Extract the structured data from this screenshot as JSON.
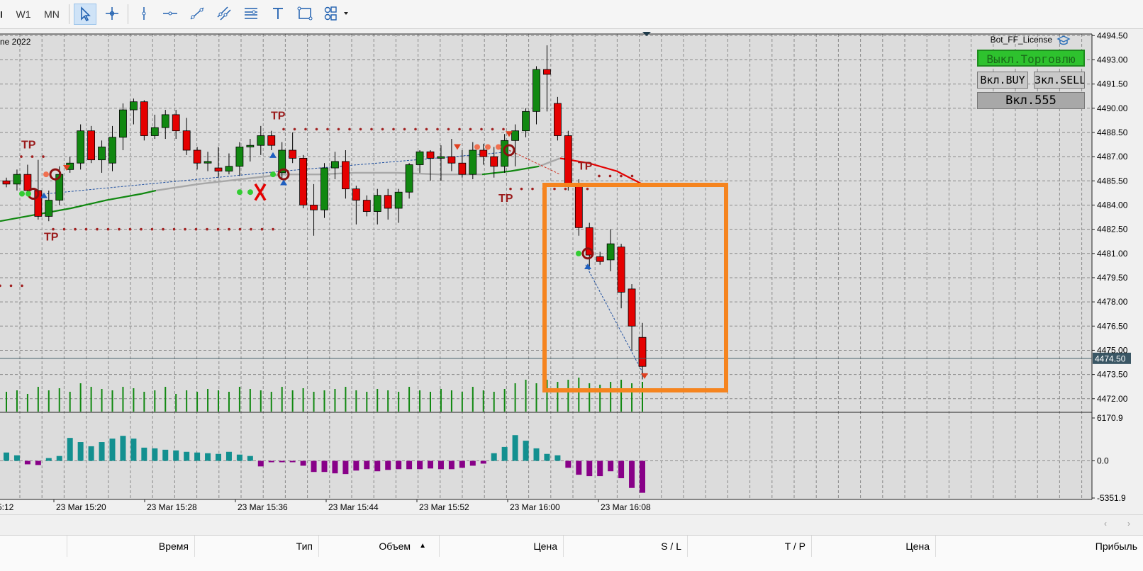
{
  "toolbar": {
    "timeframes": [
      "W1",
      "MN"
    ],
    "tools": [
      {
        "name": "cursor-icon",
        "active": true
      },
      {
        "name": "crosshair-icon",
        "active": false
      },
      {
        "name": "vertical-line-icon",
        "active": false
      },
      {
        "name": "horizontal-line-icon",
        "active": false
      },
      {
        "name": "trend-line-icon",
        "active": false
      },
      {
        "name": "channel-icon",
        "active": false
      },
      {
        "name": "fibonacci-icon",
        "active": false
      },
      {
        "name": "text-icon",
        "active": false
      },
      {
        "name": "rectangle-icon",
        "active": false
      },
      {
        "name": "shapes-icon",
        "active": false
      }
    ]
  },
  "chart": {
    "title_fragment": "ne 2022",
    "expert_label": "Bot_FF_License",
    "buttons": {
      "disable_trading": "Выкл.Торговлю",
      "buy": "Вкл.BUY",
      "sell": "Зкл.SELL",
      "magic": "Вкл.555"
    },
    "current_price": "4474.50",
    "price_labels": [
      "4494.50",
      "4493.00",
      "4491.50",
      "4490.00",
      "4488.50",
      "4487.00",
      "4485.50",
      "4484.00",
      "4482.50",
      "4481.00",
      "4479.50",
      "4478.00",
      "4476.50",
      "4475.00",
      "4473.50",
      "4472.00"
    ],
    "price_range": [
      4471.2,
      4494.6
    ],
    "osc_labels": [
      "6170.9",
      "0.0",
      "-5351.9"
    ],
    "osc_range": [
      -5351.9,
      6170.9
    ],
    "time_labels": [
      "5:12",
      "23 Mar 15:20",
      "23 Mar 15:28",
      "23 Mar 15:36",
      "23 Mar 15:44",
      "23 Mar 15:52",
      "23 Mar 16:00",
      "23 Mar 16:08"
    ],
    "tp_label": "TP",
    "colors": {
      "bull": "#118811",
      "bear": "#e50000",
      "osc_pos": "#139090",
      "osc_neg": "#880088",
      "highlight": "#f5841f",
      "ma_up": "#118811",
      "ma_flat": "#a8a8a8",
      "ma_down": "#e50000",
      "dots": "#a02020"
    },
    "candles": [
      [
        4485.5,
        4485.7,
        4485.1,
        4485.3
      ],
      [
        4485.3,
        4486.2,
        4484.9,
        4485.9
      ],
      [
        4485.9,
        4486.5,
        4484.7,
        4484.9
      ],
      [
        4484.9,
        4486.8,
        4483.1,
        4483.3
      ],
      [
        4483.3,
        4484.9,
        4483.0,
        4484.3
      ],
      [
        4484.3,
        4486.4,
        4484.0,
        4485.9
      ],
      [
        4486.2,
        4487.0,
        4486.0,
        4486.6
      ],
      [
        4486.6,
        4489.0,
        4486.2,
        4488.6
      ],
      [
        4488.6,
        4488.9,
        4486.6,
        4486.8
      ],
      [
        4486.8,
        4488.0,
        4486.0,
        4487.6
      ],
      [
        4486.6,
        4488.9,
        4486.1,
        4488.2
      ],
      [
        4488.2,
        4490.3,
        4487.4,
        4489.9
      ],
      [
        4489.9,
        4490.6,
        4489.0,
        4490.4
      ],
      [
        4490.4,
        4490.5,
        4488.0,
        4488.3
      ],
      [
        4488.3,
        4489.6,
        4488.1,
        4488.8
      ],
      [
        4488.8,
        4489.9,
        4488.1,
        4489.6
      ],
      [
        4489.6,
        4489.9,
        4488.1,
        4488.6
      ],
      [
        4488.6,
        4489.4,
        4487.1,
        4487.4
      ],
      [
        4487.4,
        4487.6,
        4486.2,
        4486.6
      ],
      [
        4486.6,
        4487.3,
        4486.1,
        4486.7
      ],
      [
        4486.3,
        4487.6,
        4485.7,
        4486.1
      ],
      [
        4486.1,
        4487.2,
        4485.9,
        4486.4
      ],
      [
        4486.4,
        4487.9,
        4485.8,
        4487.6
      ],
      [
        4487.6,
        4488.1,
        4486.7,
        4487.7
      ],
      [
        4487.7,
        4488.9,
        4487.1,
        4488.3
      ],
      [
        4488.3,
        4488.6,
        4487.4,
        4487.7
      ],
      [
        4486.0,
        4487.9,
        4485.6,
        4487.4
      ],
      [
        4487.4,
        4488.5,
        4486.6,
        4486.9
      ],
      [
        4486.9,
        4487.1,
        4483.8,
        4484.0
      ],
      [
        4484.0,
        4485.3,
        4482.1,
        4483.7
      ],
      [
        4483.7,
        4486.6,
        4483.2,
        4486.3
      ],
      [
        4486.3,
        4487.3,
        4485.6,
        4486.7
      ],
      [
        4486.7,
        4487.4,
        4484.4,
        4485.0
      ],
      [
        4485.0,
        4485.2,
        4482.8,
        4484.3
      ],
      [
        4484.3,
        4484.6,
        4483.3,
        4483.6
      ],
      [
        4483.6,
        4485.0,
        4482.8,
        4484.6
      ],
      [
        4484.6,
        4485.0,
        4483.1,
        4483.8
      ],
      [
        4483.8,
        4485.0,
        4482.9,
        4484.8
      ],
      [
        4484.8,
        4486.6,
        4484.4,
        4486.5
      ],
      [
        4486.5,
        4487.4,
        4486.0,
        4487.3
      ],
      [
        4487.3,
        4487.4,
        4485.5,
        4486.9
      ],
      [
        4486.9,
        4487.7,
        4485.5,
        4487.0
      ],
      [
        4487.0,
        4488.1,
        4486.1,
        4486.6
      ],
      [
        4486.6,
        4487.4,
        4485.7,
        4485.9
      ],
      [
        4485.9,
        4487.9,
        4485.6,
        4487.4
      ],
      [
        4487.4,
        4487.8,
        4486.5,
        4487.0
      ],
      [
        4487.0,
        4487.6,
        4485.7,
        4486.4
      ],
      [
        4486.4,
        4488.4,
        4486.0,
        4488.0
      ],
      [
        4488.0,
        4489.0,
        4486.4,
        4488.6
      ],
      [
        4488.6,
        4490.0,
        4488.2,
        4489.8
      ],
      [
        4489.8,
        4492.6,
        4489.0,
        4492.4
      ],
      [
        4492.4,
        4493.9,
        4489.8,
        4492.1
      ],
      [
        4490.3,
        4490.7,
        4488.0,
        4488.3
      ],
      [
        4488.3,
        4488.6,
        4484.9,
        4485.2
      ],
      [
        4485.2,
        4485.6,
        4482.1,
        4482.6
      ],
      [
        4482.6,
        4482.9,
        4480.0,
        4480.9
      ],
      [
        4480.8,
        4481.1,
        4480.3,
        4480.5
      ],
      [
        4480.6,
        4482.5,
        4479.9,
        4481.6
      ],
      [
        4481.4,
        4481.6,
        4477.6,
        4478.6
      ],
      [
        4478.8,
        4479.1,
        4475.0,
        4476.5
      ],
      [
        4475.8,
        4476.7,
        4473.2,
        4474.0
      ]
    ],
    "volumes": [
      28,
      30,
      25,
      35,
      30,
      33,
      28,
      40,
      35,
      32,
      30,
      35,
      33,
      28,
      30,
      35,
      25,
      30,
      28,
      32,
      30,
      28,
      35,
      32,
      30,
      28,
      35,
      30,
      33,
      28,
      30,
      32,
      35,
      30,
      28,
      32,
      30,
      28,
      35,
      30,
      28,
      32,
      30,
      28,
      35,
      30,
      28,
      32,
      40,
      45,
      40,
      45,
      42,
      45,
      48,
      40,
      38,
      42,
      45,
      40,
      42
    ],
    "oscillator": [
      1200,
      800,
      -500,
      -600,
      400,
      700,
      3300,
      2700,
      2100,
      2700,
      3200,
      3600,
      3200,
      1900,
      1800,
      1600,
      1500,
      1300,
      1200,
      1100,
      1000,
      1300,
      900,
      700,
      -800,
      -200,
      -200,
      -200,
      -700,
      -1600,
      -1600,
      -1800,
      -1900,
      -1400,
      -1200,
      -1500,
      -1300,
      -1200,
      -1200,
      -1200,
      -1100,
      -1200,
      -1200,
      -1000,
      -700,
      -400,
      1100,
      2000,
      3700,
      2900,
      1800,
      1000,
      800,
      -1000,
      -2000,
      -2200,
      -2200,
      -1500,
      -2500,
      -3900,
      -4600
    ]
  },
  "table": {
    "columns": [
      "Время",
      "Тип",
      "Объем",
      "Цена",
      "S / L",
      "T / P",
      "Цена",
      "Прибыль"
    ]
  }
}
